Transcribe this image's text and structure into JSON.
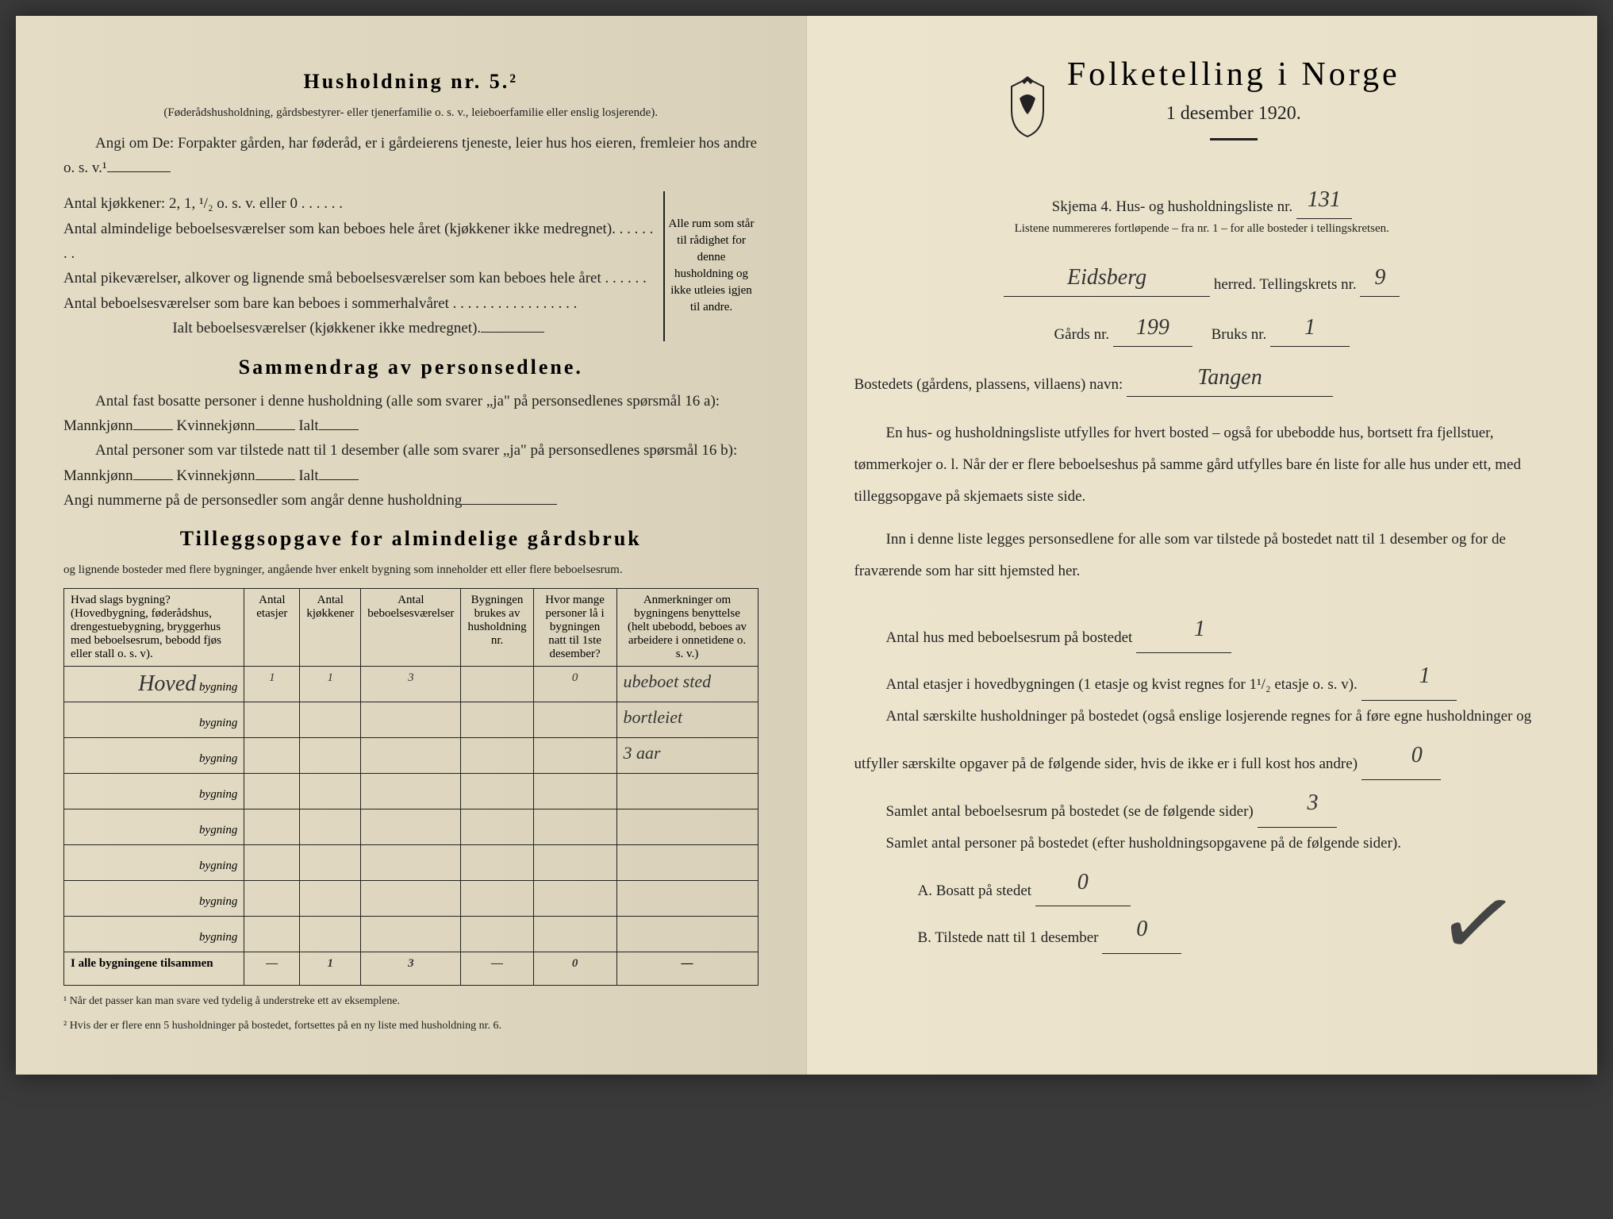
{
  "left": {
    "h_title": "Husholdning nr. 5.²",
    "h_sub": "(Føderådshusholdning, gårdsbestyrer- eller tjenerfamilie o. s. v., leieboerfamilie eller enslig losjerende).",
    "h_line1": "Angi om De: Forpakter gården, har føderåd, er i gårdeierens tjeneste, leier hus hos eieren, fremleier hos andre o. s. v.¹",
    "kitchens": "Antal kjøkkener: 2, 1, ¹/₂ o. s. v. eller 0 . . . . . .",
    "rooms1": "Antal almindelige beboelsesværelser som kan beboes hele året (kjøkkener ikke medregnet). . . . . . . .",
    "rooms2": "Antal pikeværelser, alkover og lignende små beboelsesværelser som kan beboes hele året . . . . . .",
    "rooms3": "Antal beboelsesværelser som bare kan beboes i sommerhalvåret . . . . . . . . . . . . . . . . .",
    "rooms_total": "Ialt beboelsesværelser  (kjøkkener ikke medregnet).",
    "brace_text": "Alle rum som står til rådighet for denne husholdning og ikke utleies igjen til andre.",
    "sammendrag_title": "Sammendrag av personsedlene.",
    "sd1a": "Antal fast bosatte personer i denne husholdning (alle som svarer „ja\" på personsedlenes spørsmål 16 a): Mannkjønn",
    "sd1b": "Kvinnekjønn",
    "sd1c": "Ialt",
    "sd2a": "Antal personer som var tilstede natt til 1 desember (alle som svarer „ja\" på personsedlenes spørsmål 16 b): Mannkjønn",
    "sd3": "Angi nummerne på de personsedler som angår denne husholdning",
    "tillegg_title": "Tilleggsopgave for almindelige gårdsbruk",
    "tillegg_sub": "og lignende bosteder med flere bygninger, angående hver enkelt bygning som inneholder ett eller flere beboelsesrum.",
    "table": {
      "headers": [
        "Hvad slags bygning?\n(Hovedbygning, føderådshus, drengestuebygning, bryggerhus med beboelsesrum, bebodd fjøs eller stall o. s. v).",
        "Antal etasjer",
        "Antal kjøkkener",
        "Antal beboelsesværelser",
        "Bygningen brukes av husholdning nr.",
        "Hvor mange personer lå i bygningen natt til 1ste desember?",
        "Anmerkninger om bygningens benyttelse (helt ubebodd, beboes av arbeidere i onnetidene o. s. v.)"
      ],
      "rows": [
        {
          "name": "Hoved",
          "etasjer": "1",
          "kjokken": "1",
          "vaerelser": "3",
          "hushold": "",
          "personer": "0",
          "anm": "ubeboet sted"
        },
        {
          "name": "",
          "etasjer": "",
          "kjokken": "",
          "vaerelser": "",
          "hushold": "",
          "personer": "",
          "anm": "bortleiet"
        },
        {
          "name": "",
          "etasjer": "",
          "kjokken": "",
          "vaerelser": "",
          "hushold": "",
          "personer": "",
          "anm": "3 aar"
        },
        {
          "name": "",
          "etasjer": "",
          "kjokken": "",
          "vaerelser": "",
          "hushold": "",
          "personer": "",
          "anm": ""
        },
        {
          "name": "",
          "etasjer": "",
          "kjokken": "",
          "vaerelser": "",
          "hushold": "",
          "personer": "",
          "anm": ""
        },
        {
          "name": "",
          "etasjer": "",
          "kjokken": "",
          "vaerelser": "",
          "hushold": "",
          "personer": "",
          "anm": ""
        },
        {
          "name": "",
          "etasjer": "",
          "kjokken": "",
          "vaerelser": "",
          "hushold": "",
          "personer": "",
          "anm": ""
        },
        {
          "name": "",
          "etasjer": "",
          "kjokken": "",
          "vaerelser": "",
          "hushold": "",
          "personer": "",
          "anm": ""
        }
      ],
      "totals_label": "I alle bygningene tilsammen",
      "totals": {
        "etasjer": "—",
        "kjokken": "1",
        "vaerelser": "3",
        "hushold": "—",
        "personer": "0",
        "anm": "—"
      }
    },
    "fn1": "¹  Når det passer kan man svare ved tydelig å understreke ett av eksemplene.",
    "fn2": "²  Hvis der er flere enn 5 husholdninger på bostedet, fortsettes på en ny liste med husholdning nr. 6."
  },
  "right": {
    "title": "Folketelling i Norge",
    "date": "1 desember 1920.",
    "skjema_line": "Skjema 4.  Hus- og husholdningsliste nr.",
    "liste_nr": "131",
    "skjema_sub": "Listene nummereres fortløpende – fra nr. 1 – for alle bosteder i tellingskretsen.",
    "herred_value": "Eidsberg",
    "herred_label": "herred.   Tellingskrets nr.",
    "krets_nr": "9",
    "gards_label": "Gårds nr.",
    "gards_nr": "199",
    "bruks_label": "Bruks nr.",
    "bruks_nr": "1",
    "bosted_label": "Bostedets (gårdens, plassens, villaens) navn:",
    "bosted_value": "Tangen",
    "para1": "En hus- og husholdningsliste utfylles for hvert bosted – også for ubebodde hus, bortsett fra fjellstuer, tømmerkojer o. l.  Når der er flere beboelseshus på samme gård utfylles bare én liste for alle hus under ett, med tilleggsopgave på skjemaets siste side.",
    "para2": "Inn i denne liste legges personsedlene for alle som var tilstede på bostedet natt til 1 desember og for de fraværende som har sitt hjemsted her.",
    "q1": "Antal hus med beboelsesrum på bostedet",
    "q1v": "1",
    "q2": "Antal etasjer i hovedbygningen (1 etasje og kvist regnes for 1¹/₂ etasje o. s. v).",
    "q2v": "1",
    "q3": "Antal særskilte husholdninger på bostedet (også enslige losjerende regnes for å føre egne husholdninger og utfyller særskilte opgaver på de følgende sider, hvis de ikke er i full kost hos andre)",
    "q3v": "0",
    "q4": "Samlet antal beboelsesrum på bostedet (se de følgende sider)",
    "q4v": "3",
    "q5": "Samlet antal personer på bostedet (efter husholdningsopgavene på de følgende sider).",
    "q5a": "A.  Bosatt på stedet",
    "q5av": "0",
    "q5b": "B.  Tilstede natt til 1 desember",
    "q5bv": "0"
  }
}
